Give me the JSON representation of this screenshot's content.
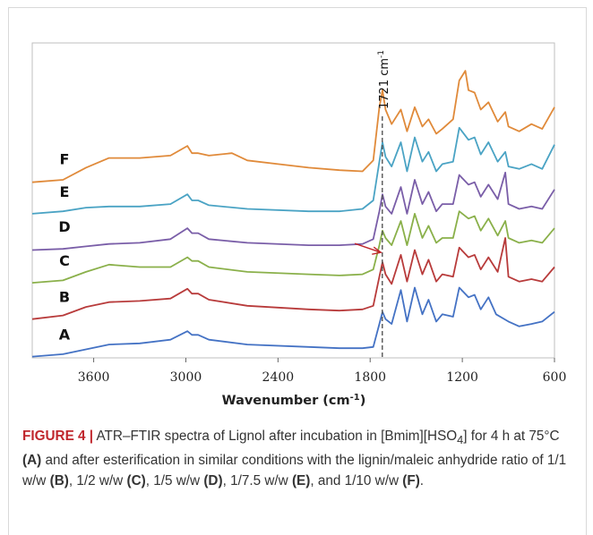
{
  "chart_data": {
    "type": "line",
    "title": "",
    "xlabel": "Wavenumber (cm",
    "xlabel_sup": "-1",
    "xlabel_close": ")",
    "ylabel": "",
    "x_reversed": true,
    "xlim": [
      4000,
      600
    ],
    "ylim": [
      0,
      13
    ],
    "grid": false,
    "legend": "labels at left of each trace",
    "x_ticks": [
      3600,
      3000,
      2400,
      1800,
      1200,
      600
    ],
    "x_tick_labels": [
      "3600",
      "3000",
      "2400",
      "1800",
      "1200",
      "600"
    ],
    "annotation": {
      "text": "1721 cm",
      "sup": "-1",
      "x": 1721,
      "line_style": "dashed"
    },
    "arrow_annotation": {
      "series": "C",
      "x_start": 1900,
      "x_end": 1730,
      "color": "#c0272d"
    },
    "series": [
      {
        "name": "A",
        "color": "#4472c4",
        "offset": 0.0,
        "points": [
          [
            4000,
            0.05
          ],
          [
            3800,
            0.15
          ],
          [
            3650,
            0.35
          ],
          [
            3500,
            0.55
          ],
          [
            3300,
            0.6
          ],
          [
            3100,
            0.75
          ],
          [
            2990,
            1.1
          ],
          [
            2960,
            0.95
          ],
          [
            2920,
            0.95
          ],
          [
            2850,
            0.75
          ],
          [
            2600,
            0.55
          ],
          [
            2200,
            0.45
          ],
          [
            2000,
            0.4
          ],
          [
            1850,
            0.4
          ],
          [
            1780,
            0.45
          ],
          [
            1740,
            1.4
          ],
          [
            1720,
            1.9
          ],
          [
            1700,
            1.6
          ],
          [
            1660,
            1.4
          ],
          [
            1600,
            2.8
          ],
          [
            1560,
            1.5
          ],
          [
            1510,
            2.9
          ],
          [
            1460,
            1.8
          ],
          [
            1420,
            2.4
          ],
          [
            1370,
            1.5
          ],
          [
            1330,
            1.8
          ],
          [
            1260,
            1.7
          ],
          [
            1220,
            2.9
          ],
          [
            1160,
            2.5
          ],
          [
            1120,
            2.6
          ],
          [
            1080,
            2.0
          ],
          [
            1030,
            2.5
          ],
          [
            980,
            1.8
          ],
          [
            900,
            1.5
          ],
          [
            830,
            1.3
          ],
          [
            750,
            1.4
          ],
          [
            680,
            1.5
          ],
          [
            600,
            1.9
          ]
        ]
      },
      {
        "name": "B",
        "color": "#b83b3b",
        "offset": 1.55,
        "points": [
          [
            4000,
            0.05
          ],
          [
            3800,
            0.2
          ],
          [
            3650,
            0.55
          ],
          [
            3500,
            0.75
          ],
          [
            3300,
            0.8
          ],
          [
            3100,
            0.9
          ],
          [
            2990,
            1.3
          ],
          [
            2960,
            1.1
          ],
          [
            2920,
            1.1
          ],
          [
            2850,
            0.85
          ],
          [
            2600,
            0.6
          ],
          [
            2200,
            0.45
          ],
          [
            2000,
            0.4
          ],
          [
            1850,
            0.45
          ],
          [
            1780,
            0.6
          ],
          [
            1740,
            1.8
          ],
          [
            1720,
            2.4
          ],
          [
            1700,
            1.9
          ],
          [
            1660,
            1.5
          ],
          [
            1600,
            2.7
          ],
          [
            1560,
            1.6
          ],
          [
            1510,
            2.9
          ],
          [
            1460,
            1.9
          ],
          [
            1420,
            2.5
          ],
          [
            1370,
            1.6
          ],
          [
            1330,
            1.9
          ],
          [
            1260,
            1.8
          ],
          [
            1220,
            3.0
          ],
          [
            1160,
            2.6
          ],
          [
            1120,
            2.7
          ],
          [
            1080,
            2.1
          ],
          [
            1030,
            2.6
          ],
          [
            970,
            2.0
          ],
          [
            920,
            3.4
          ],
          [
            900,
            1.8
          ],
          [
            830,
            1.6
          ],
          [
            750,
            1.7
          ],
          [
            680,
            1.6
          ],
          [
            600,
            2.2
          ]
        ]
      },
      {
        "name": "C",
        "color": "#8ab04a",
        "offset": 3.05,
        "points": [
          [
            4000,
            0.05
          ],
          [
            3800,
            0.15
          ],
          [
            3650,
            0.5
          ],
          [
            3500,
            0.8
          ],
          [
            3300,
            0.7
          ],
          [
            3100,
            0.7
          ],
          [
            2990,
            1.1
          ],
          [
            2960,
            0.95
          ],
          [
            2920,
            0.95
          ],
          [
            2850,
            0.7
          ],
          [
            2600,
            0.5
          ],
          [
            2200,
            0.4
          ],
          [
            2000,
            0.35
          ],
          [
            1850,
            0.4
          ],
          [
            1780,
            0.6
          ],
          [
            1740,
            1.6
          ],
          [
            1720,
            2.2
          ],
          [
            1700,
            1.9
          ],
          [
            1660,
            1.6
          ],
          [
            1600,
            2.6
          ],
          [
            1560,
            1.6
          ],
          [
            1510,
            2.9
          ],
          [
            1460,
            1.9
          ],
          [
            1420,
            2.4
          ],
          [
            1370,
            1.7
          ],
          [
            1330,
            1.9
          ],
          [
            1260,
            1.9
          ],
          [
            1220,
            3.0
          ],
          [
            1160,
            2.7
          ],
          [
            1120,
            2.8
          ],
          [
            1080,
            2.2
          ],
          [
            1030,
            2.7
          ],
          [
            970,
            2.0
          ],
          [
            920,
            2.6
          ],
          [
            900,
            1.9
          ],
          [
            830,
            1.7
          ],
          [
            750,
            1.8
          ],
          [
            680,
            1.7
          ],
          [
            600,
            2.3
          ]
        ]
      },
      {
        "name": "D",
        "color": "#7a5ea8",
        "offset": 4.45,
        "points": [
          [
            4000,
            0.0
          ],
          [
            3800,
            0.05
          ],
          [
            3650,
            0.15
          ],
          [
            3500,
            0.25
          ],
          [
            3300,
            0.3
          ],
          [
            3100,
            0.45
          ],
          [
            2990,
            0.9
          ],
          [
            2960,
            0.7
          ],
          [
            2920,
            0.7
          ],
          [
            2850,
            0.45
          ],
          [
            2600,
            0.3
          ],
          [
            2200,
            0.2
          ],
          [
            2000,
            0.2
          ],
          [
            1850,
            0.25
          ],
          [
            1780,
            0.45
          ],
          [
            1740,
            1.6
          ],
          [
            1720,
            2.3
          ],
          [
            1700,
            1.8
          ],
          [
            1660,
            1.5
          ],
          [
            1600,
            2.6
          ],
          [
            1560,
            1.5
          ],
          [
            1510,
            2.9
          ],
          [
            1460,
            1.9
          ],
          [
            1420,
            2.4
          ],
          [
            1370,
            1.6
          ],
          [
            1330,
            1.9
          ],
          [
            1260,
            1.9
          ],
          [
            1220,
            3.1
          ],
          [
            1160,
            2.7
          ],
          [
            1120,
            2.8
          ],
          [
            1080,
            2.2
          ],
          [
            1030,
            2.7
          ],
          [
            970,
            2.1
          ],
          [
            920,
            3.2
          ],
          [
            900,
            1.9
          ],
          [
            830,
            1.7
          ],
          [
            750,
            1.8
          ],
          [
            680,
            1.7
          ],
          [
            600,
            2.5
          ]
        ]
      },
      {
        "name": "E",
        "color": "#4aa3c4",
        "offset": 5.9,
        "points": [
          [
            4000,
            0.05
          ],
          [
            3800,
            0.15
          ],
          [
            3650,
            0.3
          ],
          [
            3500,
            0.35
          ],
          [
            3300,
            0.35
          ],
          [
            3100,
            0.45
          ],
          [
            2990,
            0.85
          ],
          [
            2960,
            0.6
          ],
          [
            2920,
            0.6
          ],
          [
            2850,
            0.4
          ],
          [
            2600,
            0.25
          ],
          [
            2200,
            0.15
          ],
          [
            2000,
            0.15
          ],
          [
            1850,
            0.25
          ],
          [
            1780,
            0.6
          ],
          [
            1740,
            2.2
          ],
          [
            1720,
            3.0
          ],
          [
            1700,
            2.4
          ],
          [
            1660,
            2.0
          ],
          [
            1600,
            3.0
          ],
          [
            1560,
            1.8
          ],
          [
            1510,
            3.2
          ],
          [
            1460,
            2.2
          ],
          [
            1420,
            2.6
          ],
          [
            1370,
            1.8
          ],
          [
            1330,
            2.1
          ],
          [
            1260,
            2.2
          ],
          [
            1220,
            3.6
          ],
          [
            1160,
            3.1
          ],
          [
            1120,
            3.2
          ],
          [
            1080,
            2.5
          ],
          [
            1030,
            3.0
          ],
          [
            970,
            2.2
          ],
          [
            920,
            2.6
          ],
          [
            900,
            2.0
          ],
          [
            830,
            1.9
          ],
          [
            750,
            2.1
          ],
          [
            680,
            1.9
          ],
          [
            600,
            2.9
          ]
        ]
      },
      {
        "name": "F",
        "color": "#e08a3a",
        "offset": 7.25,
        "points": [
          [
            4000,
            0.0
          ],
          [
            3800,
            0.1
          ],
          [
            3650,
            0.6
          ],
          [
            3500,
            1.0
          ],
          [
            3300,
            1.0
          ],
          [
            3100,
            1.1
          ],
          [
            2990,
            1.5
          ],
          [
            2960,
            1.2
          ],
          [
            2920,
            1.2
          ],
          [
            2850,
            1.1
          ],
          [
            2700,
            1.2
          ],
          [
            2600,
            0.9
          ],
          [
            2400,
            0.75
          ],
          [
            2200,
            0.6
          ],
          [
            2000,
            0.5
          ],
          [
            1850,
            0.45
          ],
          [
            1780,
            0.9
          ],
          [
            1740,
            3.1
          ],
          [
            1720,
            3.8
          ],
          [
            1700,
            3.0
          ],
          [
            1660,
            2.4
          ],
          [
            1600,
            3.0
          ],
          [
            1560,
            2.1
          ],
          [
            1510,
            3.1
          ],
          [
            1460,
            2.3
          ],
          [
            1420,
            2.6
          ],
          [
            1370,
            2.0
          ],
          [
            1330,
            2.2
          ],
          [
            1260,
            2.6
          ],
          [
            1220,
            4.2
          ],
          [
            1180,
            4.6
          ],
          [
            1160,
            3.8
          ],
          [
            1120,
            3.7
          ],
          [
            1080,
            3.0
          ],
          [
            1030,
            3.3
          ],
          [
            970,
            2.5
          ],
          [
            920,
            2.9
          ],
          [
            900,
            2.3
          ],
          [
            830,
            2.1
          ],
          [
            750,
            2.4
          ],
          [
            680,
            2.2
          ],
          [
            600,
            3.1
          ]
        ]
      }
    ]
  },
  "caption": {
    "figure_label": "FIGURE 4 |",
    "text_1": " ATR–FTIR spectra of Lignol after incubation in [Bmim][HSO",
    "sub_4": "4",
    "text_2": "] for 4 h at 75°C ",
    "ref_a": "(A)",
    "text_3": " and after esterification in similar conditions with the lignin/maleic anhydride ratio of 1/1 w/w ",
    "ref_b": "(B)",
    "text_4": ", 1/2 w/w ",
    "ref_c": "(C)",
    "text_5": ", 1/5 w/w ",
    "ref_d": "(D)",
    "text_6": ", 1/7.5 w/w ",
    "ref_e": "(E)",
    "text_7": ", and 1/10 w/w ",
    "ref_f": "(F)",
    "text_8": "."
  }
}
